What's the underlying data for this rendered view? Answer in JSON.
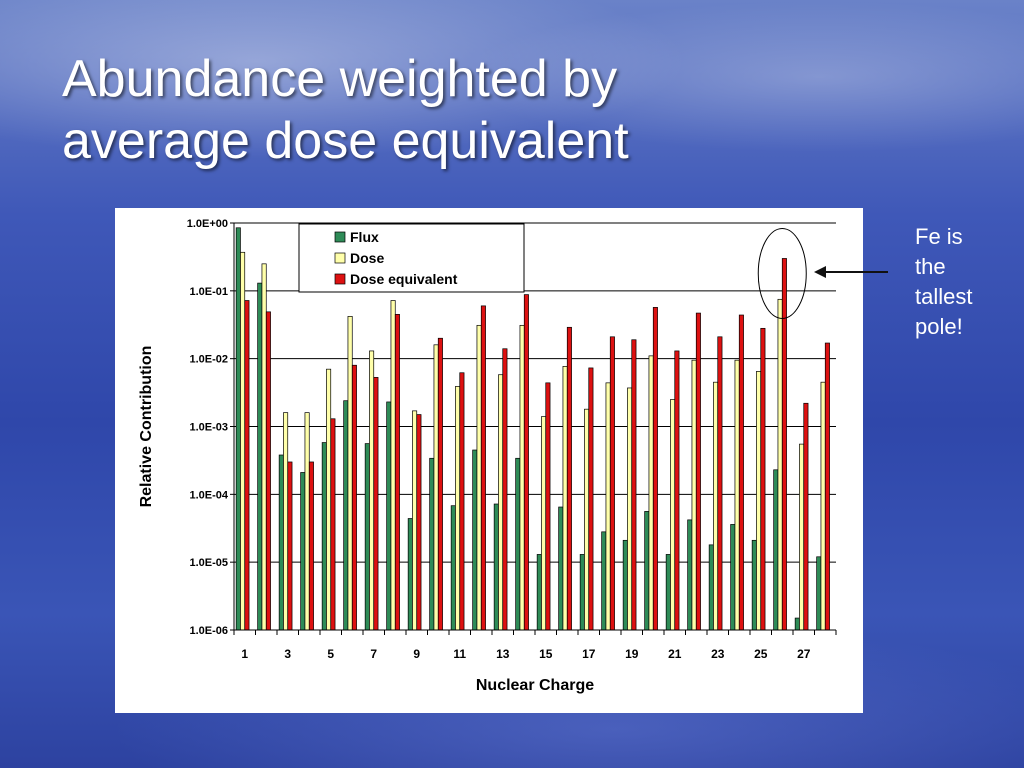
{
  "slide": {
    "title_line1": "Abundance weighted by",
    "title_line2": "average dose equivalent",
    "callout": [
      "Fe is",
      "the",
      "tallest",
      "pole!"
    ]
  },
  "chart_data": {
    "type": "bar",
    "xlabel": "Nuclear Charge",
    "ylabel": "Relative Contribution",
    "yscale": "log",
    "ylim": [
      1e-06,
      1
    ],
    "yticks": [
      "1.0E+00",
      "1.0E-01",
      "1.0E-02",
      "1.0E-03",
      "1.0E-04",
      "1.0E-05",
      "1.0E-06"
    ],
    "categories": [
      1,
      2,
      3,
      4,
      5,
      6,
      7,
      8,
      9,
      10,
      11,
      12,
      13,
      14,
      15,
      16,
      17,
      18,
      19,
      20,
      21,
      22,
      23,
      24,
      25,
      26,
      27,
      28
    ],
    "x_tick_labels": [
      "1",
      "3",
      "5",
      "7",
      "9",
      "11",
      "13",
      "15",
      "17",
      "19",
      "21",
      "23",
      "25",
      "27"
    ],
    "legend_position": "top-left",
    "grid": "horizontal",
    "highlight": {
      "category": 26,
      "shape": "ellipse"
    },
    "series": [
      {
        "name": "Flux",
        "color": "#2e8b57",
        "values": [
          0.85,
          0.13,
          0.00038,
          0.00021,
          0.00058,
          0.0024,
          0.00056,
          0.0023,
          4.4e-05,
          0.00034,
          6.8e-05,
          0.00045,
          7.2e-05,
          0.00034,
          1.3e-05,
          6.5e-05,
          1.3e-05,
          2.8e-05,
          2.1e-05,
          5.6e-05,
          1.3e-05,
          4.2e-05,
          1.8e-05,
          3.6e-05,
          2.1e-05,
          0.00023,
          1.5e-06,
          1.2e-05
        ]
      },
      {
        "name": "Dose",
        "color": "#ffffaa",
        "values": [
          0.37,
          0.25,
          0.0016,
          0.0016,
          0.007,
          0.042,
          0.013,
          0.072,
          0.0017,
          0.016,
          0.0039,
          0.031,
          0.0058,
          0.031,
          0.0014,
          0.0077,
          0.0018,
          0.0044,
          0.0037,
          0.011,
          0.0025,
          0.0095,
          0.0045,
          0.0095,
          0.0065,
          0.075,
          0.00055,
          0.0045
        ]
      },
      {
        "name": "Dose equivalent",
        "color": "#dd1111",
        "values": [
          0.072,
          0.049,
          0.0003,
          0.0003,
          0.0013,
          0.008,
          0.0053,
          0.045,
          0.0015,
          0.02,
          0.0062,
          0.06,
          0.014,
          0.088,
          0.0044,
          0.029,
          0.0073,
          0.021,
          0.019,
          0.057,
          0.013,
          0.047,
          0.021,
          0.044,
          0.028,
          0.3,
          0.0022,
          0.017
        ]
      }
    ]
  }
}
